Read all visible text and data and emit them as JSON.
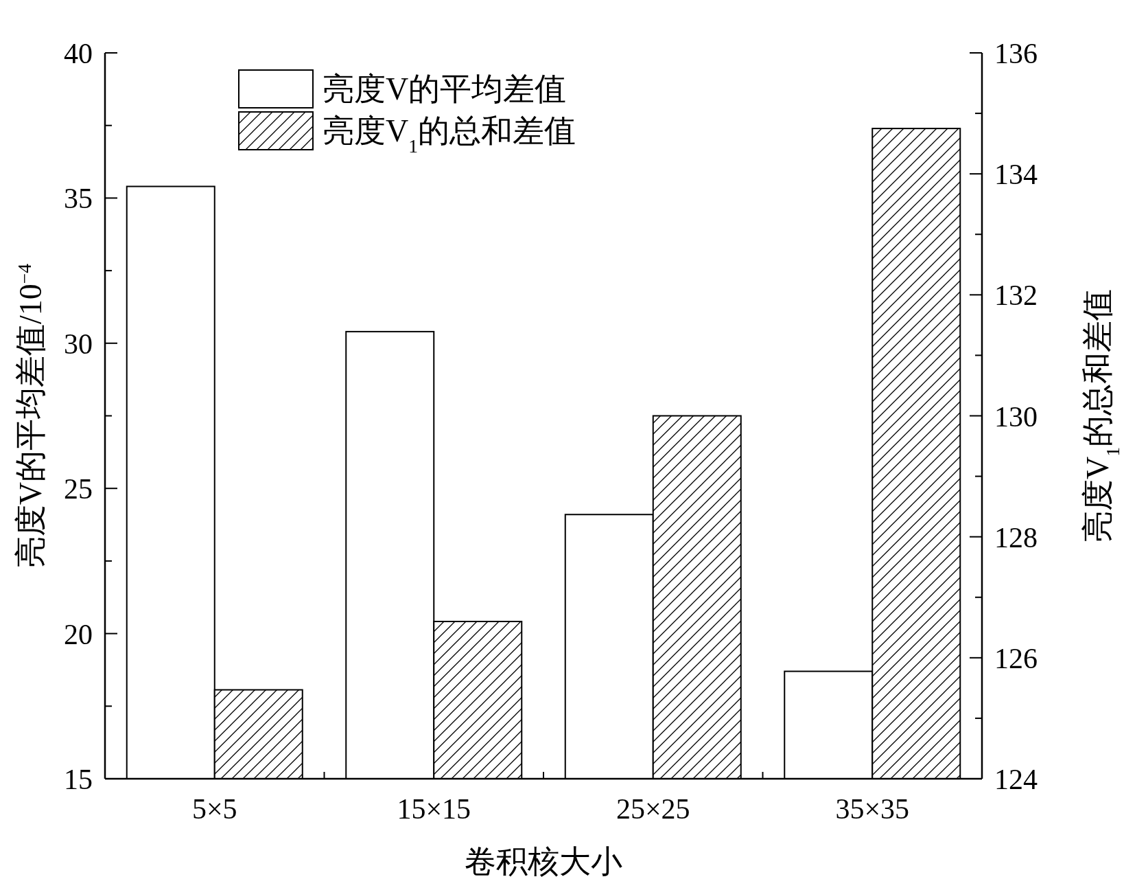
{
  "chart_data": {
    "type": "bar",
    "categories": [
      "5×5",
      "15×15",
      "25×25",
      "35×35"
    ],
    "series": [
      {
        "name": "亮度V的平均差值",
        "color": "#ffffff",
        "values": [
          35.4,
          30.4,
          24.1,
          18.7
        ]
      },
      {
        "name": "亮度V$_{1}$的总和差值",
        "color": "#000000",
        "axis": "y2",
        "values": [
          125.47,
          126.6,
          130.0,
          134.75
        ]
      }
    ],
    "xlabel": "卷积核大小",
    "ylabel": "亮度V的平均差值/10$^{−4}$",
    "y2label": "亮度V$_{1}$的总和差值",
    "ylim": [
      15,
      40
    ],
    "yticks": [
      15,
      20,
      25,
      30,
      35,
      40
    ],
    "y2lim": [
      124,
      136
    ],
    "y2ticks": [
      124,
      126,
      128,
      130,
      132,
      134,
      136
    ],
    "legend": "top left",
    "grid": false
  }
}
